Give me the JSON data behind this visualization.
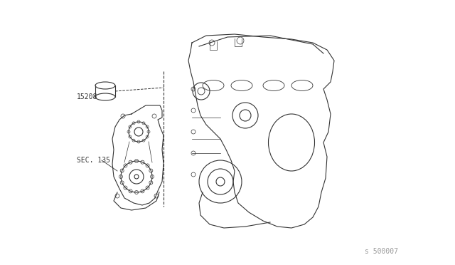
{
  "bg_color": "#ffffff",
  "line_color": "#333333",
  "label_15208": "15208",
  "label_sec135": "SEC. 135",
  "watermark": "s 500007",
  "fig_width": 6.4,
  "fig_height": 3.72,
  "dpi": 100
}
